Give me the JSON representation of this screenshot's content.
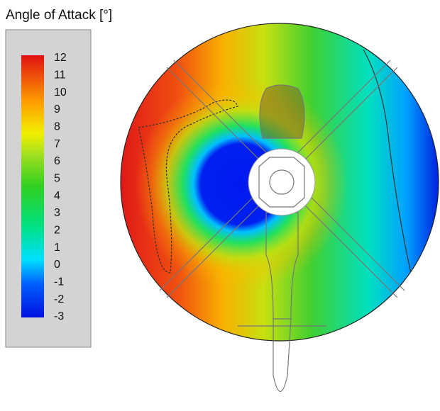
{
  "chart_data": {
    "type": "contour",
    "title": "Angle of Attack [°]",
    "colorbar": {
      "lim": [
        -3,
        12
      ],
      "ticks": [
        12,
        11,
        10,
        9,
        8,
        7,
        6,
        5,
        4,
        3,
        2,
        1,
        0,
        -1,
        -2,
        -3
      ]
    }
  }
}
